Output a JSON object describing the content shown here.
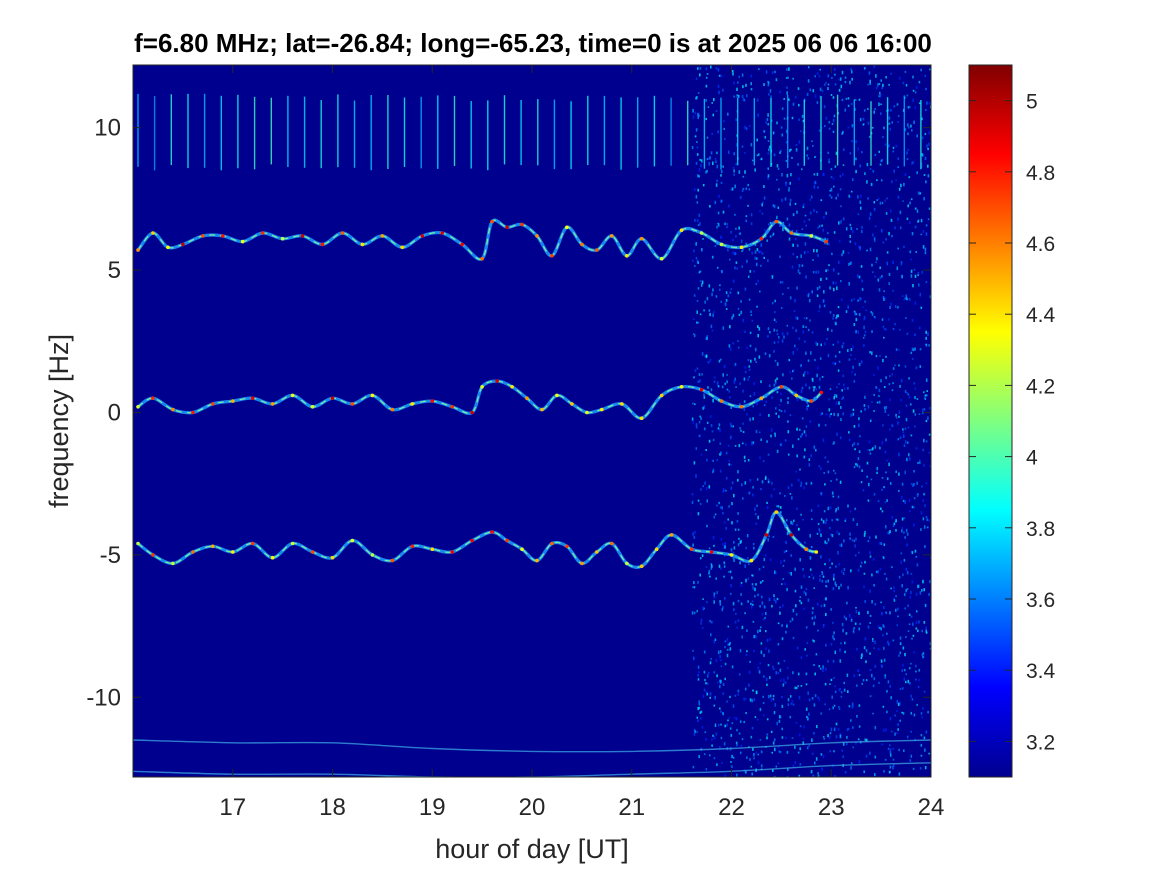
{
  "chart_data": {
    "type": "heatmap",
    "title": "f=6.80 MHz;  lat=-26.84; long=-65.23, time=0 is at 2025 06 06 16:00",
    "xlabel": "hour of day [UT]",
    "ylabel": "frequency [Hz]",
    "xlim": [
      16,
      24
    ],
    "ylim": [
      -12.8,
      12.2
    ],
    "x_ticks": [
      17,
      18,
      19,
      20,
      21,
      22,
      23,
      24
    ],
    "x_tick_labels": [
      "17",
      "18",
      "19",
      "20",
      "21",
      "22",
      "23",
      "24"
    ],
    "y_ticks": [
      10,
      5,
      0,
      -5,
      -10
    ],
    "y_tick_labels": [
      "10",
      "5",
      "0",
      "-5",
      "-10"
    ],
    "colorbar": {
      "colormap": "jet",
      "clim": [
        3.1,
        5.1
      ],
      "ticks": [
        5,
        4.8,
        4.6,
        4.4,
        4.2,
        4,
        3.8,
        3.6,
        3.4,
        3.2
      ],
      "tick_labels": [
        "5",
        "4.8",
        "4.6",
        "4.4",
        "4.2",
        "4",
        "3.8",
        "3.6",
        "3.4",
        "3.2"
      ]
    },
    "background_color": "#00008F",
    "noise_onset_hour": 21.6,
    "comb_band_hz": [
      8.5,
      11.2
    ],
    "traces": [
      {
        "center_offset_hz": 5.5,
        "x_hours": [
          16.05,
          16.2,
          16.35,
          16.5,
          16.7,
          16.9,
          17.1,
          17.3,
          17.5,
          17.7,
          17.9,
          18.1,
          18.3,
          18.5,
          18.7,
          18.9,
          19.1,
          19.3,
          19.5,
          19.6,
          19.75,
          19.9,
          20.05,
          20.2,
          20.35,
          20.5,
          20.65,
          20.8,
          20.95,
          21.1,
          21.3,
          21.5,
          21.7,
          21.9,
          22.1,
          22.3,
          22.45,
          22.6,
          22.8,
          22.95
        ],
        "y_hz": [
          5.7,
          6.3,
          5.8,
          5.9,
          6.2,
          6.2,
          6.0,
          6.3,
          6.1,
          6.2,
          5.9,
          6.3,
          5.9,
          6.2,
          5.8,
          6.2,
          6.3,
          5.9,
          5.4,
          6.7,
          6.5,
          6.6,
          6.2,
          5.5,
          6.5,
          5.9,
          5.7,
          6.2,
          5.5,
          6.1,
          5.4,
          6.4,
          6.3,
          5.9,
          5.8,
          6.1,
          6.7,
          6.3,
          6.2,
          6.0
        ]
      },
      {
        "center_offset_hz": 0.0,
        "x_hours": [
          16.05,
          16.2,
          16.4,
          16.6,
          16.8,
          17.0,
          17.2,
          17.4,
          17.6,
          17.8,
          18.0,
          18.2,
          18.4,
          18.6,
          18.8,
          19.0,
          19.2,
          19.4,
          19.5,
          19.65,
          19.8,
          19.95,
          20.1,
          20.25,
          20.4,
          20.55,
          20.7,
          20.9,
          21.1,
          21.3,
          21.5,
          21.7,
          21.9,
          22.1,
          22.3,
          22.5,
          22.65,
          22.8,
          22.9
        ],
        "y_hz": [
          0.2,
          0.5,
          0.1,
          0.0,
          0.3,
          0.4,
          0.5,
          0.3,
          0.6,
          0.2,
          0.5,
          0.3,
          0.6,
          0.1,
          0.3,
          0.4,
          0.2,
          0.0,
          0.9,
          1.1,
          0.9,
          0.5,
          0.1,
          0.6,
          0.3,
          0.0,
          0.1,
          0.3,
          -0.2,
          0.6,
          0.9,
          0.8,
          0.4,
          0.2,
          0.5,
          0.9,
          0.6,
          0.4,
          0.7
        ]
      },
      {
        "center_offset_hz": -5.0,
        "x_hours": [
          16.05,
          16.2,
          16.4,
          16.6,
          16.8,
          17.0,
          17.2,
          17.4,
          17.6,
          17.8,
          18.0,
          18.2,
          18.4,
          18.6,
          18.8,
          19.0,
          19.2,
          19.4,
          19.6,
          19.75,
          19.9,
          20.05,
          20.2,
          20.35,
          20.5,
          20.65,
          20.8,
          20.95,
          21.1,
          21.25,
          21.4,
          21.6,
          21.8,
          22.0,
          22.2,
          22.35,
          22.45,
          22.6,
          22.75,
          22.85
        ],
        "y_hz": [
          -4.6,
          -5.0,
          -5.3,
          -4.9,
          -4.7,
          -4.9,
          -4.6,
          -5.1,
          -4.6,
          -4.9,
          -5.1,
          -4.5,
          -5.0,
          -5.2,
          -4.7,
          -4.8,
          -4.9,
          -4.5,
          -4.2,
          -4.5,
          -4.8,
          -5.2,
          -4.6,
          -4.7,
          -5.3,
          -4.9,
          -4.6,
          -5.3,
          -5.4,
          -4.8,
          -4.3,
          -4.8,
          -4.9,
          -5.0,
          -5.2,
          -4.3,
          -3.5,
          -4.3,
          -4.8,
          -4.9
        ]
      },
      {
        "center_offset_hz": -11.6,
        "x_hours": [
          16.0,
          17.0,
          18.0,
          19.0,
          20.0,
          21.0,
          22.0,
          23.0,
          24.0
        ],
        "y_hz": [
          -11.5,
          -11.6,
          -11.6,
          -11.8,
          -11.9,
          -11.9,
          -11.8,
          -11.6,
          -11.5
        ]
      },
      {
        "center_offset_hz": -12.6,
        "x_hours": [
          16.0,
          17.0,
          18.0,
          19.0,
          20.0,
          21.0,
          22.0,
          23.0,
          24.0
        ],
        "y_hz": [
          -12.6,
          -12.7,
          -12.7,
          -12.8,
          -12.8,
          -12.7,
          -12.6,
          -12.4,
          -12.3
        ]
      }
    ]
  }
}
